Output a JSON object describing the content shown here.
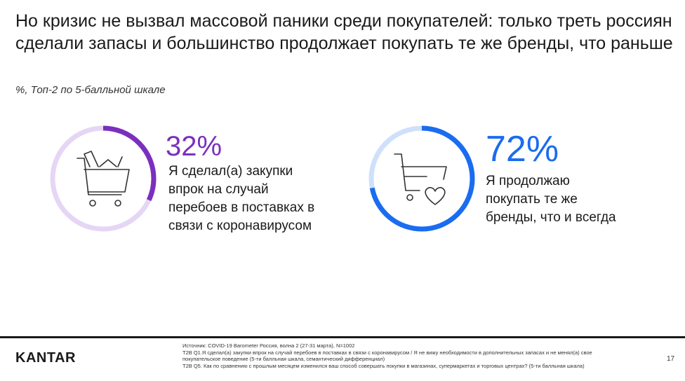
{
  "title": "Но кризис не вызвал массовой паники среди покупателей: только треть россиян сделали запасы и большинство продолжает покупать те же бренды, что раньше",
  "subtitle": "%, Топ-2 по 5-балльной шкале",
  "chart_data": [
    {
      "type": "pie",
      "value": 32,
      "value_label": "32%",
      "label": "Я сделал(а) закупки впрок на случай перебоев в поставках в связи с коронавирусом",
      "color": "#7b2fbe",
      "track_color": "#e6d6f5",
      "icon": "shopping-cart-with-groceries-icon"
    },
    {
      "type": "pie",
      "value": 72,
      "value_label": "72%",
      "label": "Я продолжаю покупать те же бренды, что и всегда",
      "color": "#1a6cf0",
      "track_color": "#cfe0fb",
      "icon": "shopping-cart-with-heart-icon"
    }
  ],
  "footer": {
    "logo": "KANTAR",
    "source_line1": "Источник: COVID-19 Barometer Россия, волна 2 (27-31 марта), N=1002",
    "source_line2": "T2B Q1.Я сделал(а) закупки впрок на случай перебоев в поставках в связи с коронавирусом / Я не вижу необходимости в дополнительных запасах и не менял(а) свое покупательское поведение  (5-ти балльная шкала, семантический дифференциал)",
    "source_line3": "T2B Q5. Как по сравнению с прошлым месяцем изменился ваш способ совершать покупки в магазинах, супермаркетах и торговых центрах? (5-ти балльная шкала)",
    "page_number": "17"
  }
}
